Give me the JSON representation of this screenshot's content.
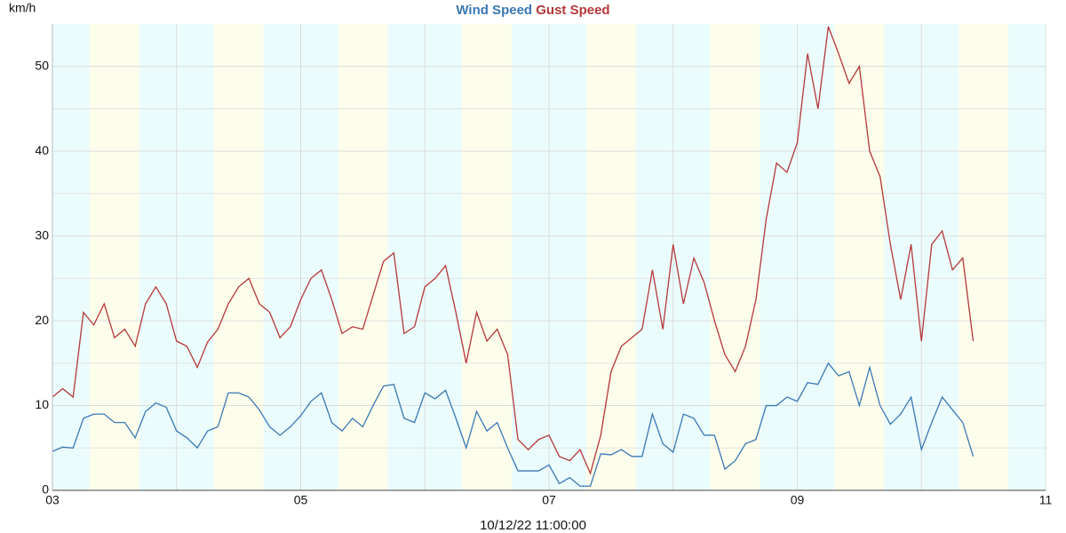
{
  "chart_data": {
    "type": "line",
    "y_label": "km/h",
    "footer": "10/12/22 11:00:00",
    "x": [
      3,
      3.083,
      3.167,
      3.25,
      3.333,
      3.417,
      3.5,
      3.583,
      3.667,
      3.75,
      3.833,
      3.917,
      4,
      4.083,
      4.167,
      4.25,
      4.333,
      4.417,
      4.5,
      4.583,
      4.667,
      4.75,
      4.833,
      4.917,
      5,
      5.083,
      5.167,
      5.25,
      5.333,
      5.417,
      5.5,
      5.583,
      5.667,
      5.75,
      5.833,
      5.917,
      6,
      6.083,
      6.167,
      6.25,
      6.333,
      6.417,
      6.5,
      6.583,
      6.667,
      6.75,
      6.833,
      6.917,
      7,
      7.083,
      7.167,
      7.25,
      7.333,
      7.417,
      7.5,
      7.583,
      7.667,
      7.75,
      7.833,
      7.917,
      8,
      8.083,
      8.167,
      8.25,
      8.333,
      8.417,
      8.5,
      8.583,
      8.667,
      8.75,
      8.833,
      8.917,
      9,
      9.083,
      9.167,
      9.25,
      9.333,
      9.417,
      9.5,
      9.583,
      9.667,
      9.75,
      9.833,
      9.917,
      10,
      10.083,
      10.167,
      10.25,
      10.333,
      10.417
    ],
    "series": [
      {
        "name": "Wind Speed",
        "color": "#3a78b5",
        "values": [
          4.6,
          5.1,
          5,
          8.5,
          9,
          9,
          8,
          8,
          6.2,
          9.3,
          10.3,
          9.8,
          7,
          6.2,
          5,
          7,
          7.5,
          11.5,
          11.5,
          11,
          9.5,
          7.5,
          6.5,
          7.5,
          8.8,
          10.5,
          11.5,
          8,
          7,
          8.5,
          7.5,
          10,
          12.3,
          12.5,
          8.5,
          8,
          11.5,
          10.8,
          11.8,
          8.5,
          5,
          9.3,
          7,
          8,
          5,
          2.3,
          2.3,
          2.3,
          3,
          0.8,
          1.5,
          0.5,
          0.5,
          4.3,
          4.2,
          4.8,
          4,
          4,
          9,
          5.5,
          4.5,
          9,
          8.5,
          6.5,
          6.5,
          2.5,
          3.5,
          5.5,
          6,
          10,
          10,
          11,
          10.5,
          12.7,
          12.5,
          15,
          13.5,
          14,
          10,
          14.5,
          10,
          7.8,
          9,
          11,
          4.8,
          8,
          11,
          9.5,
          8,
          4
        ]
      },
      {
        "name": "Gust Speed",
        "color": "#b5373a",
        "values": [
          11,
          12,
          11,
          21,
          19.5,
          22,
          18,
          19,
          17,
          22,
          24,
          22,
          17.6,
          17,
          14.5,
          17.5,
          19,
          22,
          24,
          25,
          22,
          21,
          18,
          19.3,
          22.5,
          25,
          26,
          22.5,
          18.5,
          19.3,
          19,
          23,
          27,
          28,
          18.5,
          19.3,
          24,
          25,
          26.5,
          21,
          15,
          21,
          17.6,
          19,
          16,
          6,
          4.8,
          6,
          6.5,
          4,
          3.5,
          4.8,
          2,
          6.5,
          14,
          17,
          18,
          19,
          26,
          19,
          29,
          22,
          27.4,
          24.5,
          20,
          16,
          14,
          17,
          22.5,
          32,
          38.6,
          37.5,
          41,
          51.5,
          45,
          54.7,
          51.5,
          48,
          50,
          40,
          37,
          29,
          22.5,
          29,
          17.6,
          29,
          30.6,
          26,
          27.4,
          17.6
        ]
      }
    ],
    "xlim": [
      3,
      11
    ],
    "xticks": [
      {
        "value": 3,
        "label": "03"
      },
      {
        "value": 5,
        "label": "05"
      },
      {
        "value": 7,
        "label": "07"
      },
      {
        "value": 9,
        "label": "09"
      },
      11
    ],
    "xminor": [
      4,
      6,
      8,
      10
    ],
    "ylim": [
      0,
      55
    ],
    "yticks": [
      0,
      10,
      20,
      30,
      40,
      50
    ],
    "yminor": [
      5,
      15,
      25,
      35,
      45
    ],
    "grid": true,
    "night_color": "#ebfcfc",
    "day_color": "#fdfdeb",
    "day_bands": [
      [
        3.3,
        3.7
      ],
      [
        4.3,
        4.7
      ],
      [
        5.3,
        5.7
      ],
      [
        6.3,
        6.7
      ],
      [
        7.3,
        7.7
      ],
      [
        8.3,
        8.7
      ],
      [
        9.3,
        9.7
      ],
      [
        10.3,
        10.7
      ]
    ]
  }
}
